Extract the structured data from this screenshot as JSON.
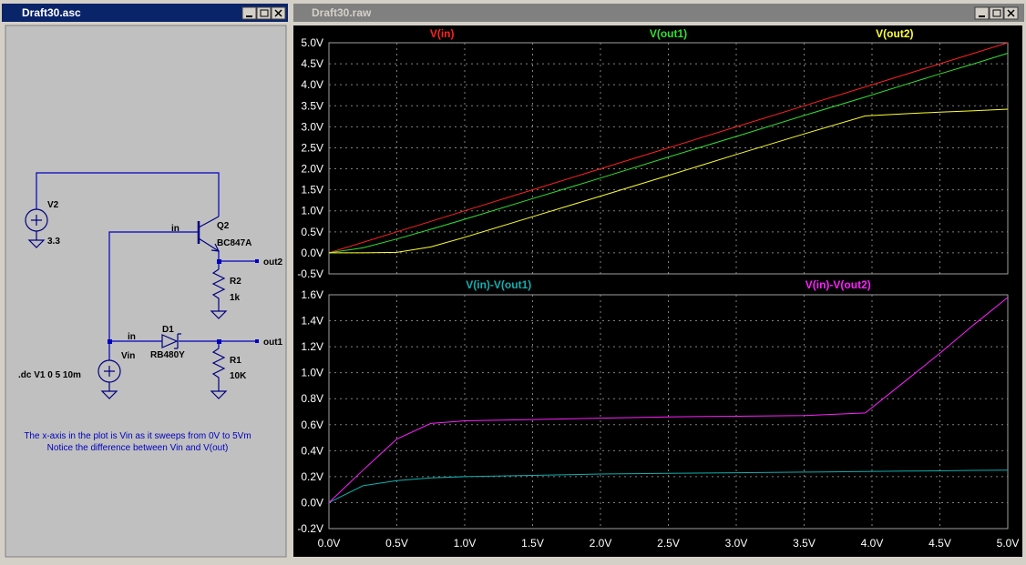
{
  "schematic": {
    "title": "Draft30.asc",
    "labels": [
      "V2",
      "3.3",
      "in",
      "Q2",
      "BC847A",
      "out2",
      "R2",
      "1k",
      "in",
      "D1",
      "RB480Y",
      "out1",
      "Vin",
      "R1",
      "10K",
      ".dc V1 0 5 10m"
    ],
    "note": [
      "The x-axis in the plot is Vin as it sweeps from 0V to 5Vm",
      "Notice the difference between Vin and V(out)"
    ]
  },
  "plot_window": {
    "title": "Draft30.raw"
  },
  "chart_data": [
    {
      "type": "line",
      "x": [
        0,
        0.25,
        0.5,
        0.75,
        1,
        1.5,
        2,
        2.5,
        3,
        3.5,
        3.95,
        4.25,
        4.5,
        4.75,
        5
      ],
      "series": [
        {
          "name": "V(in)",
          "color": "#ff2020",
          "values": [
            0,
            0.25,
            0.5,
            0.75,
            1,
            1.5,
            2,
            2.5,
            3,
            3.5,
            3.95,
            4.25,
            4.5,
            4.75,
            5
          ]
        },
        {
          "name": "V(out1)",
          "color": "#30e030",
          "values": [
            0,
            0.12,
            0.33,
            0.56,
            0.8,
            1.29,
            1.78,
            2.28,
            2.77,
            3.27,
            3.71,
            4.01,
            4.26,
            4.5,
            4.75
          ]
        },
        {
          "name": "V(out2)",
          "color": "#ffff30",
          "values": [
            0,
            0,
            0.01,
            0.14,
            0.37,
            0.86,
            1.35,
            1.84,
            2.34,
            2.83,
            3.26,
            3.31,
            3.35,
            3.38,
            3.42
          ]
        }
      ],
      "xlim": [
        0,
        5
      ],
      "xticks": [
        0,
        0.5,
        1,
        1.5,
        2,
        2.5,
        3,
        3.5,
        4,
        4.5,
        5
      ],
      "ylim": [
        -0.5,
        5
      ],
      "yticks": [
        {
          "value": -0.5,
          "label": "-0.5V"
        },
        {
          "value": 0,
          "label": "0.0V"
        },
        {
          "value": 0.5,
          "label": "0.5V"
        },
        {
          "value": 1,
          "label": "1.0V"
        },
        {
          "value": 1.5,
          "label": "1.5V"
        },
        {
          "value": 2,
          "label": "2.0V"
        },
        {
          "value": 2.5,
          "label": "2.5V"
        },
        {
          "value": 3,
          "label": "3.0V"
        },
        {
          "value": 3.5,
          "label": "3.5V"
        },
        {
          "value": 4,
          "label": "4.0V"
        },
        {
          "value": 4.5,
          "label": "4.5V"
        },
        {
          "value": 5,
          "label": "5.0V"
        }
      ],
      "grid": true
    },
    {
      "type": "line",
      "x": [
        0,
        0.25,
        0.5,
        0.75,
        1,
        1.5,
        2,
        2.5,
        3,
        3.5,
        3.95,
        4.25,
        4.5,
        4.75,
        5
      ],
      "series": [
        {
          "name": "V(in)-V(out1)",
          "color": "#10b0b0",
          "values": [
            0,
            0.13,
            0.17,
            0.19,
            0.2,
            0.21,
            0.22,
            0.225,
            0.23,
            0.235,
            0.24,
            0.243,
            0.245,
            0.248,
            0.25
          ]
        },
        {
          "name": "V(in)-V(out2)",
          "color": "#ff20ff",
          "values": [
            0,
            0.25,
            0.49,
            0.61,
            0.63,
            0.64,
            0.65,
            0.66,
            0.665,
            0.67,
            0.69,
            0.94,
            1.15,
            1.37,
            1.58
          ]
        }
      ],
      "xlim": [
        0,
        5
      ],
      "xticks": [
        {
          "value": 0,
          "label": "0.0V"
        },
        {
          "value": 0.5,
          "label": "0.5V"
        },
        {
          "value": 1,
          "label": "1.0V"
        },
        {
          "value": 1.5,
          "label": "1.5V"
        },
        {
          "value": 2,
          "label": "2.0V"
        },
        {
          "value": 2.5,
          "label": "2.5V"
        },
        {
          "value": 3,
          "label": "3.0V"
        },
        {
          "value": 3.5,
          "label": "3.5V"
        },
        {
          "value": 4,
          "label": "4.0V"
        },
        {
          "value": 4.5,
          "label": "4.5V"
        },
        {
          "value": 5,
          "label": "5.0V"
        }
      ],
      "ylim": [
        -0.2,
        1.6
      ],
      "yticks": [
        {
          "value": -0.2,
          "label": "-0.2V"
        },
        {
          "value": 0,
          "label": "0.0V"
        },
        {
          "value": 0.2,
          "label": "0.2V"
        },
        {
          "value": 0.4,
          "label": "0.4V"
        },
        {
          "value": 0.6,
          "label": "0.6V"
        },
        {
          "value": 0.8,
          "label": "0.8V"
        },
        {
          "value": 1,
          "label": "1.0V"
        },
        {
          "value": 1.2,
          "label": "1.2V"
        },
        {
          "value": 1.4,
          "label": "1.4V"
        },
        {
          "value": 1.6,
          "label": "1.6V"
        }
      ],
      "grid": true
    }
  ]
}
